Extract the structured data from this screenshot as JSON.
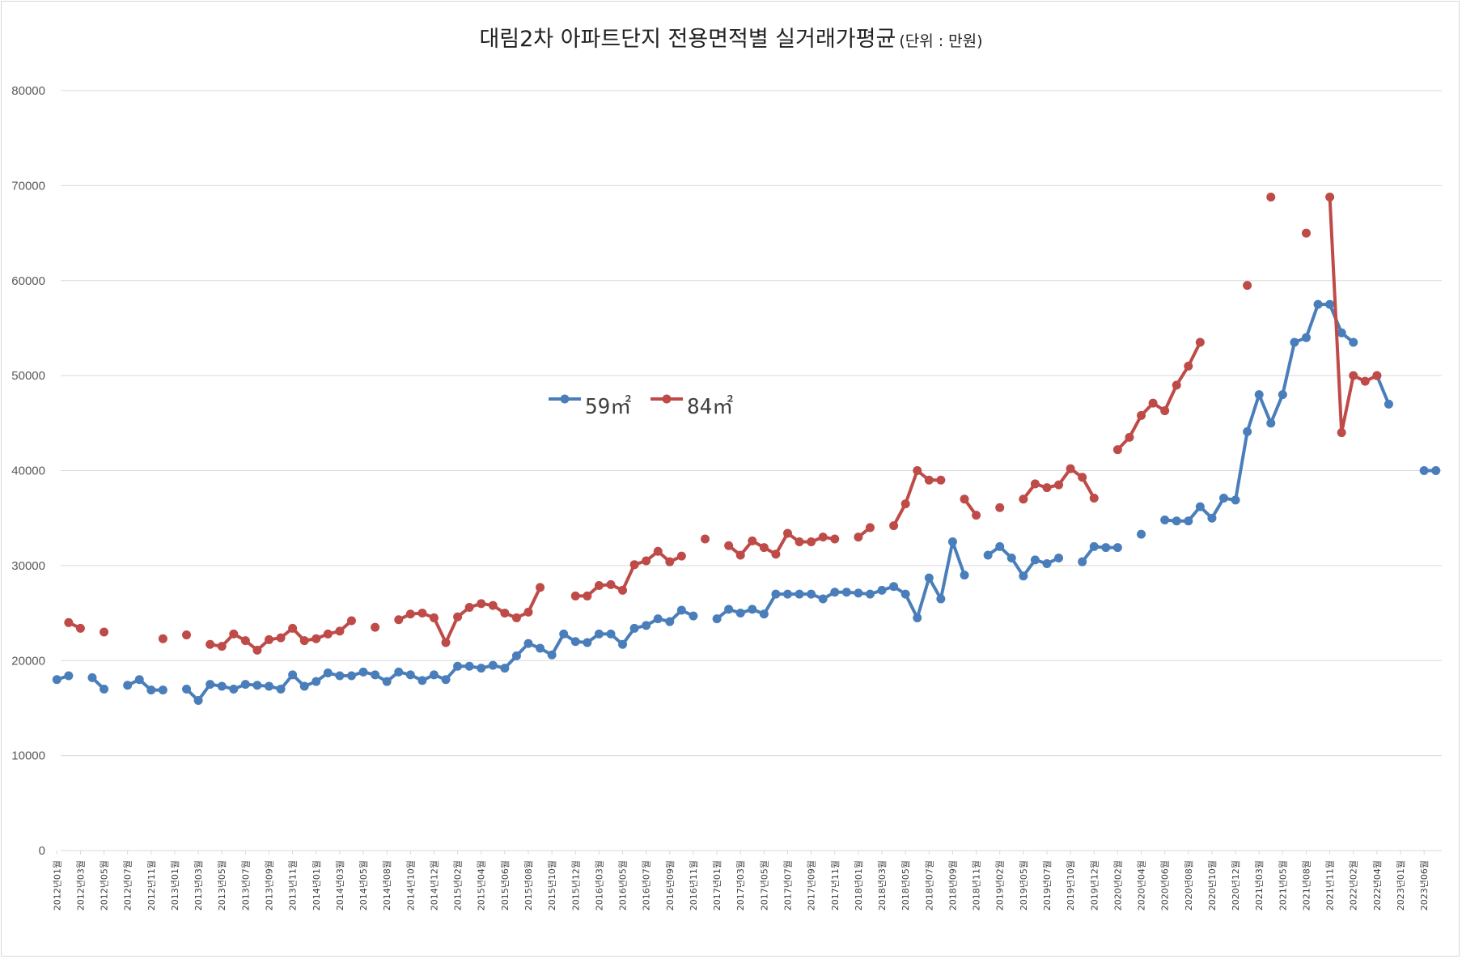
{
  "title": {
    "main": "대림2차 아파트단지 전용면적별 실거래가평균",
    "unit": "(단위 : 만원)"
  },
  "colors": {
    "s59": "#4a7ebb",
    "s84": "#be4b48",
    "grid": "#d9d9d9",
    "axis_text": "#595959"
  },
  "chart_data": {
    "type": "line",
    "title": "대림2차 아파트단지 전용면적별 실거래가평균 (단위 : 만원)",
    "ylim": [
      0,
      80000
    ],
    "yticks": [
      0,
      10000,
      20000,
      30000,
      40000,
      50000,
      60000,
      70000,
      80000
    ],
    "grid": true,
    "legend_placement": "center",
    "xtick_labels": [
      "2012년01월",
      "2012년03월",
      "2012년05월",
      "2012년07월",
      "2012년11월",
      "2013년01월",
      "2013년03월",
      "2013년05월",
      "2013년07월",
      "2013년09월",
      "2013년11월",
      "2014년01월",
      "2014년03월",
      "2014년05월",
      "2014년08월",
      "2014년10월",
      "2014년12월",
      "2015년02월",
      "2015년04월",
      "2015년06월",
      "2015년08월",
      "2015년10월",
      "2015년12월",
      "2016년03월",
      "2016년05월",
      "2016년07월",
      "2016년09월",
      "2016년11월",
      "2017년01월",
      "2017년03월",
      "2017년05월",
      "2017년07월",
      "2017년09월",
      "2017년11월",
      "2018년01월",
      "2018년03월",
      "2018년05월",
      "2018년07월",
      "2018년09월",
      "2018년11월",
      "2019년02월",
      "2019년05월",
      "2019년07월",
      "2019년10월",
      "2019년12월",
      "2020년02월",
      "2020년04월",
      "2020년06월",
      "2020년08월",
      "2020년10월",
      "2020년12월",
      "2021년03월",
      "2021년05월",
      "2021년08월",
      "2021년11월",
      "2022년02월",
      "2022년04월",
      "2023년01월",
      "2023년06월"
    ],
    "series": [
      {
        "name": "59㎡",
        "values": [
          18000,
          18400,
          null,
          18200,
          17000,
          null,
          17400,
          18000,
          16900,
          16900,
          null,
          17000,
          15800,
          17500,
          17300,
          17000,
          17500,
          17400,
          17300,
          17000,
          18500,
          17300,
          17800,
          18700,
          18400,
          18400,
          18800,
          18500,
          17800,
          18800,
          18500,
          17900,
          18500,
          18000,
          19400,
          19400,
          19200,
          19500,
          19200,
          20500,
          21800,
          21300,
          20600,
          22800,
          22000,
          21900,
          22800,
          22800,
          21700,
          23400,
          23700,
          24400,
          24100,
          25300,
          24700,
          null,
          24400,
          25400,
          25000,
          25400,
          24900,
          27000,
          27000,
          27000,
          27000,
          26500,
          27200,
          27200,
          27100,
          27000,
          27400,
          27800,
          27000,
          24500,
          28700,
          26500,
          32500,
          29000,
          null,
          31100,
          32000,
          30800,
          28900,
          30600,
          30200,
          30800,
          null,
          30400,
          32000,
          31900,
          31900,
          null,
          33300,
          null,
          34800,
          34700,
          34700,
          36200,
          35000,
          37100,
          36900,
          44100,
          48000,
          45000,
          48000,
          53500,
          54000,
          57500,
          57500,
          54500,
          53500,
          null,
          50000,
          47000,
          null,
          null,
          40000,
          40000
        ]
      },
      {
        "name": "84㎡",
        "values": [
          null,
          24000,
          23400,
          null,
          23000,
          null,
          null,
          null,
          null,
          22300,
          null,
          22700,
          null,
          21700,
          21500,
          22800,
          22100,
          21100,
          22200,
          22400,
          23400,
          22100,
          22300,
          22800,
          23100,
          24200,
          null,
          23500,
          null,
          24300,
          24900,
          25000,
          24500,
          21900,
          24600,
          25600,
          26000,
          25800,
          25000,
          24500,
          25100,
          27700,
          null,
          null,
          26800,
          26800,
          27900,
          28000,
          27400,
          30100,
          30500,
          31500,
          30400,
          31000,
          null,
          32800,
          null,
          32100,
          31100,
          32600,
          31900,
          31200,
          33400,
          32500,
          32500,
          33000,
          32800,
          null,
          33000,
          34000,
          null,
          34200,
          36500,
          40000,
          39000,
          39000,
          null,
          37000,
          35300,
          null,
          36100,
          null,
          37000,
          38600,
          38200,
          38500,
          40200,
          39300,
          37100,
          null,
          42200,
          43500,
          45800,
          47100,
          46300,
          49000,
          51000,
          53500,
          null,
          null,
          null,
          59500,
          null,
          68800,
          null,
          null,
          65000,
          null,
          68800,
          44000,
          50000,
          49400,
          50000
        ]
      }
    ]
  }
}
